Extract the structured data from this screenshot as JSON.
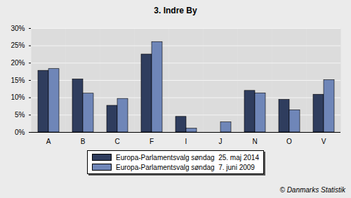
{
  "chart_data": {
    "type": "bar",
    "title": "3. Indre By",
    "caption": "© Danmarks Statistik",
    "categories": [
      "A",
      "B",
      "C",
      "F",
      "I",
      "J",
      "N",
      "O",
      "V"
    ],
    "series": [
      {
        "name": "Europa-Parlamentsvalg søndag  25. maj 2014",
        "color": "#2f3d5e",
        "values": [
          17.8,
          15.3,
          7.7,
          22.5,
          4.5,
          null,
          12.0,
          9.4,
          10.9
        ]
      },
      {
        "name": "Europa-Parlamentsvalg søndag  7. juni 2009",
        "color": "#6f86b8",
        "values": [
          18.3,
          11.2,
          9.7,
          26.1,
          1.1,
          2.9,
          11.3,
          6.4,
          15.1
        ]
      }
    ],
    "ylim": [
      0,
      30
    ],
    "yticks": [
      {
        "value": 0,
        "label": "0%"
      },
      {
        "value": 5,
        "label": "5%"
      },
      {
        "value": 10,
        "label": "10%"
      },
      {
        "value": 15,
        "label": "15%"
      },
      {
        "value": 20,
        "label": "20%"
      },
      {
        "value": 25,
        "label": "25%"
      },
      {
        "value": 30,
        "label": "30%"
      }
    ],
    "grid": true,
    "legend": "bottom"
  }
}
